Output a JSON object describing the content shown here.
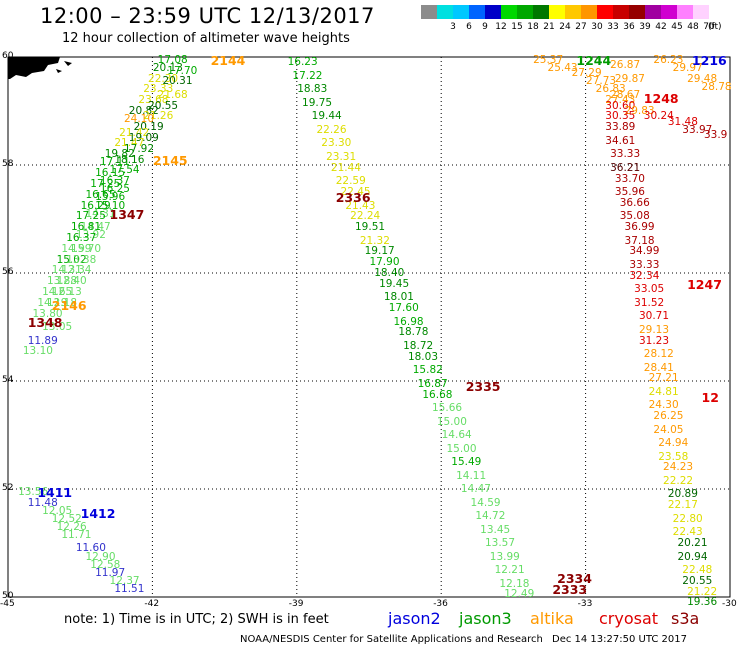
{
  "header": {
    "title": "12:00 – 23:59 UTC 12/13/2017",
    "subtitle": "12 hour collection of altimeter wave heights"
  },
  "legend": {
    "unit": "(ft)",
    "bins": [
      {
        "label": "",
        "color": "#8c8c8c"
      },
      {
        "label": "3",
        "color": "#00e0e0"
      },
      {
        "label": "6",
        "color": "#00c8ff"
      },
      {
        "label": "9",
        "color": "#0064ff"
      },
      {
        "label": "12",
        "color": "#0000c8"
      },
      {
        "label": "15",
        "color": "#00d800"
      },
      {
        "label": "18",
        "color": "#00a800"
      },
      {
        "label": "21",
        "color": "#007800"
      },
      {
        "label": "24",
        "color": "#ffff00"
      },
      {
        "label": "27",
        "color": "#ffc800"
      },
      {
        "label": "30",
        "color": "#ff9600"
      },
      {
        "label": "33",
        "color": "#ff0000"
      },
      {
        "label": "36",
        "color": "#c80000"
      },
      {
        "label": "39",
        "color": "#960000"
      },
      {
        "label": "42",
        "color": "#a000a0"
      },
      {
        "label": "45",
        "color": "#d000d0"
      },
      {
        "label": "48",
        "color": "#ff80ff"
      },
      {
        "label": "70",
        "color": "#ffd2ff"
      }
    ]
  },
  "axes": {
    "x_ticks": [
      "-45",
      "-42",
      "-39",
      "-36",
      "-33",
      "-30"
    ],
    "y_ticks": [
      "60",
      "58",
      "56",
      "54",
      "52",
      "50"
    ],
    "lon_range": [
      -45,
      -30
    ],
    "lat_range": [
      50,
      60
    ]
  },
  "satellites": {
    "jason2": {
      "name": "jason2",
      "color": "#0000dd"
    },
    "jason3": {
      "name": "jason3",
      "color": "#009900"
    },
    "altika": {
      "name": "altika",
      "color": "#ff9900"
    },
    "cryosat": {
      "name": "cryosat",
      "color": "#dd0000"
    },
    "s3a": {
      "name": "s3a",
      "color": "#8b0000"
    }
  },
  "pass_labels": [
    {
      "text": "2144",
      "lon": -40.5,
      "lat": 59.95,
      "color": "#ff9900"
    },
    {
      "text": "2145",
      "lon": -41.7,
      "lat": 58.1,
      "color": "#ff9900"
    },
    {
      "text": "1347",
      "lon": -42.6,
      "lat": 57.1,
      "color": "#8b0000"
    },
    {
      "text": "2146",
      "lon": -43.8,
      "lat": 55.4,
      "color": "#ff9900"
    },
    {
      "text": "1348",
      "lon": -44.3,
      "lat": 55.1,
      "color": "#8b0000"
    },
    {
      "text": "1411",
      "lon": -44.1,
      "lat": 51.95,
      "color": "#0000dd"
    },
    {
      "text": "1412",
      "lon": -43.2,
      "lat": 51.55,
      "color": "#0000dd"
    },
    {
      "text": "2336",
      "lon": -37.9,
      "lat": 57.4,
      "color": "#8b0000"
    },
    {
      "text": "2335",
      "lon": -35.2,
      "lat": 53.9,
      "color": "#8b0000"
    },
    {
      "text": "2334",
      "lon": -33.3,
      "lat": 50.35,
      "color": "#8b0000"
    },
    {
      "text": "2333",
      "lon": -33.4,
      "lat": 50.15,
      "color": "#8b0000"
    },
    {
      "text": "1244",
      "lon": -32.9,
      "lat": 59.95,
      "color": "#009900"
    },
    {
      "text": "1248",
      "lon": -31.5,
      "lat": 59.25,
      "color": "#dd0000"
    },
    {
      "text": "1247",
      "lon": -30.6,
      "lat": 55.8,
      "color": "#dd0000"
    },
    {
      "text": "1216",
      "lon": -30.5,
      "lat": 59.95,
      "color": "#0000dd"
    },
    {
      "text": "12",
      "lon": -30.3,
      "lat": 53.7,
      "color": "#dd0000"
    }
  ],
  "observations": [
    {
      "v": "17.08",
      "lon": -41.6,
      "lat": 59.95,
      "c": "#00aa00"
    },
    {
      "v": "20.13",
      "lon": -41.7,
      "lat": 59.8,
      "c": "#008800"
    },
    {
      "v": "17.70",
      "lon": -41.4,
      "lat": 59.75,
      "c": "#00aa00"
    },
    {
      "v": "22.30",
      "lon": -41.8,
      "lat": 59.6,
      "c": "#dddd00"
    },
    {
      "v": "20.31",
      "lon": -41.5,
      "lat": 59.55,
      "c": "#006600"
    },
    {
      "v": "23.33",
      "lon": -41.9,
      "lat": 59.4,
      "c": "#dddd00"
    },
    {
      "v": "21.68",
      "lon": -41.6,
      "lat": 59.3,
      "c": "#dddd00"
    },
    {
      "v": "23.68",
      "lon": -42.0,
      "lat": 59.2,
      "c": "#dddd00"
    },
    {
      "v": "20.55",
      "lon": -41.8,
      "lat": 59.1,
      "c": "#006600"
    },
    {
      "v": "20.82",
      "lon": -42.2,
      "lat": 59.0,
      "c": "#006600"
    },
    {
      "v": "21.26",
      "lon": -41.9,
      "lat": 58.9,
      "c": "#dddd00"
    },
    {
      "v": "24.10",
      "lon": -42.3,
      "lat": 58.85,
      "c": "#ff9900"
    },
    {
      "v": "20.19",
      "lon": -42.1,
      "lat": 58.7,
      "c": "#006600"
    },
    {
      "v": "21.42",
      "lon": -42.4,
      "lat": 58.6,
      "c": "#dddd00"
    },
    {
      "v": "19.09",
      "lon": -42.2,
      "lat": 58.5,
      "c": "#006600"
    },
    {
      "v": "21.47",
      "lon": -42.5,
      "lat": 58.4,
      "c": "#dddd00"
    },
    {
      "v": "17.92",
      "lon": -42.3,
      "lat": 58.3,
      "c": "#008800"
    },
    {
      "v": "19.82",
      "lon": -42.7,
      "lat": 58.2,
      "c": "#008800"
    },
    {
      "v": "18.16",
      "lon": -42.5,
      "lat": 58.1,
      "c": "#008800"
    },
    {
      "v": "17.11",
      "lon": -42.8,
      "lat": 58.05,
      "c": "#00aa00"
    },
    {
      "v": "17.54",
      "lon": -42.6,
      "lat": 57.9,
      "c": "#00aa00"
    },
    {
      "v": "16.15",
      "lon": -42.9,
      "lat": 57.85,
      "c": "#00aa00"
    },
    {
      "v": "16.37",
      "lon": -42.8,
      "lat": 57.7,
      "c": "#00aa00"
    },
    {
      "v": "17.25",
      "lon": -43.0,
      "lat": 57.65,
      "c": "#00aa00"
    },
    {
      "v": "16.25",
      "lon": -42.8,
      "lat": 57.55,
      "c": "#00aa00"
    },
    {
      "v": "16.65",
      "lon": -43.1,
      "lat": 57.45,
      "c": "#00aa00"
    },
    {
      "v": "15.96",
      "lon": -42.9,
      "lat": 57.4,
      "c": "#00aa00"
    },
    {
      "v": "15.10",
      "lon": -42.9,
      "lat": 57.25,
      "c": "#00aa00"
    },
    {
      "v": "16.29",
      "lon": -43.2,
      "lat": 57.25,
      "c": "#00aa00"
    },
    {
      "v": "14.31",
      "lon": -43.1,
      "lat": 57.1,
      "c": "#66dd66"
    },
    {
      "v": "17.25",
      "lon": -43.3,
      "lat": 57.05,
      "c": "#00aa00"
    },
    {
      "v": "14.47",
      "lon": -43.2,
      "lat": 56.85,
      "c": "#66dd66"
    },
    {
      "v": "16.81",
      "lon": -43.4,
      "lat": 56.85,
      "c": "#00aa00"
    },
    {
      "v": "13.92",
      "lon": -43.3,
      "lat": 56.7,
      "c": "#66dd66"
    },
    {
      "v": "16.37",
      "lon": -43.5,
      "lat": 56.65,
      "c": "#00aa00"
    },
    {
      "v": "14.99",
      "lon": -43.6,
      "lat": 56.45,
      "c": "#66dd66"
    },
    {
      "v": "15.70",
      "lon": -43.4,
      "lat": 56.45,
      "c": "#66dd66"
    },
    {
      "v": "15.02",
      "lon": -43.7,
      "lat": 56.25,
      "c": "#00aa00"
    },
    {
      "v": "13.38",
      "lon": -43.5,
      "lat": 56.25,
      "c": "#66dd66"
    },
    {
      "v": "14.31",
      "lon": -43.8,
      "lat": 56.05,
      "c": "#66dd66"
    },
    {
      "v": "12.34",
      "lon": -43.6,
      "lat": 56.05,
      "c": "#66dd66"
    },
    {
      "v": "13.88",
      "lon": -43.9,
      "lat": 55.85,
      "c": "#66dd66"
    },
    {
      "v": "12.40",
      "lon": -43.7,
      "lat": 55.85,
      "c": "#66dd66"
    },
    {
      "v": "14.65",
      "lon": -44.0,
      "lat": 55.65,
      "c": "#66dd66"
    },
    {
      "v": "12.13",
      "lon": -43.8,
      "lat": 55.65,
      "c": "#66dd66"
    },
    {
      "v": "14.19",
      "lon": -44.1,
      "lat": 55.45,
      "c": "#66dd66"
    },
    {
      "v": "12.18",
      "lon": -43.9,
      "lat": 55.45,
      "c": "#66dd66"
    },
    {
      "v": "13.80",
      "lon": -44.2,
      "lat": 55.25,
      "c": "#66dd66"
    },
    {
      "v": "13.05",
      "lon": -44.0,
      "lat": 55.0,
      "c": "#66dd66"
    },
    {
      "v": "11.89",
      "lon": -44.3,
      "lat": 54.75,
      "c": "#3333cc"
    },
    {
      "v": "13.10",
      "lon": -44.4,
      "lat": 54.55,
      "c": "#66dd66"
    },
    {
      "v": "13.56",
      "lon": -44.5,
      "lat": 51.95,
      "c": "#66dd66"
    },
    {
      "v": "11.48",
      "lon": -44.3,
      "lat": 51.75,
      "c": "#3333cc"
    },
    {
      "v": "12.05",
      "lon": -44.0,
      "lat": 51.6,
      "c": "#66dd66"
    },
    {
      "v": "12.52",
      "lon": -43.8,
      "lat": 51.45,
      "c": "#66dd66"
    },
    {
      "v": "12.26",
      "lon": -43.7,
      "lat": 51.3,
      "c": "#66dd66"
    },
    {
      "v": "11.71",
      "lon": -43.6,
      "lat": 51.15,
      "c": "#66dd66"
    },
    {
      "v": "11.60",
      "lon": -43.3,
      "lat": 50.9,
      "c": "#3333cc"
    },
    {
      "v": "12.90",
      "lon": -43.1,
      "lat": 50.75,
      "c": "#66dd66"
    },
    {
      "v": "12.58",
      "lon": -43.0,
      "lat": 50.6,
      "c": "#66dd66"
    },
    {
      "v": "11.97",
      "lon": -42.9,
      "lat": 50.45,
      "c": "#3333cc"
    },
    {
      "v": "12.37",
      "lon": -42.6,
      "lat": 50.3,
      "c": "#66dd66"
    },
    {
      "v": "11.51",
      "lon": -42.5,
      "lat": 50.15,
      "c": "#3333cc"
    },
    {
      "v": "16.23",
      "lon": -38.9,
      "lat": 59.9,
      "c": "#00aa00"
    },
    {
      "v": "17.22",
      "lon": -38.8,
      "lat": 59.65,
      "c": "#00aa00"
    },
    {
      "v": "18.83",
      "lon": -38.7,
      "lat": 59.4,
      "c": "#008800"
    },
    {
      "v": "19.75",
      "lon": -38.6,
      "lat": 59.15,
      "c": "#008800"
    },
    {
      "v": "19.44",
      "lon": -38.4,
      "lat": 58.9,
      "c": "#008800"
    },
    {
      "v": "22.26",
      "lon": -38.3,
      "lat": 58.65,
      "c": "#dddd00"
    },
    {
      "v": "23.30",
      "lon": -38.2,
      "lat": 58.4,
      "c": "#dddd00"
    },
    {
      "v": "23.31",
      "lon": -38.1,
      "lat": 58.15,
      "c": "#dddd00"
    },
    {
      "v": "21.44",
      "lon": -38.0,
      "lat": 57.95,
      "c": "#dddd00"
    },
    {
      "v": "22.59",
      "lon": -37.9,
      "lat": 57.7,
      "c": "#dddd00"
    },
    {
      "v": "22.45",
      "lon": -37.8,
      "lat": 57.5,
      "c": "#dddd00"
    },
    {
      "v": "21.43",
      "lon": -37.7,
      "lat": 57.25,
      "c": "#dddd00"
    },
    {
      "v": "22.24",
      "lon": -37.6,
      "lat": 57.05,
      "c": "#dddd00"
    },
    {
      "v": "19.51",
      "lon": -37.5,
      "lat": 56.85,
      "c": "#008800"
    },
    {
      "v": "21.32",
      "lon": -37.4,
      "lat": 56.6,
      "c": "#dddd00"
    },
    {
      "v": "19.17",
      "lon": -37.3,
      "lat": 56.4,
      "c": "#008800"
    },
    {
      "v": "17.90",
      "lon": -37.2,
      "lat": 56.2,
      "c": "#00aa00"
    },
    {
      "v": "18.40",
      "lon": -37.1,
      "lat": 56.0,
      "c": "#008800"
    },
    {
      "v": "19.45",
      "lon": -37.0,
      "lat": 55.8,
      "c": "#008800"
    },
    {
      "v": "18.01",
      "lon": -36.9,
      "lat": 55.55,
      "c": "#008800"
    },
    {
      "v": "17.60",
      "lon": -36.8,
      "lat": 55.35,
      "c": "#00aa00"
    },
    {
      "v": "16.98",
      "lon": -36.7,
      "lat": 55.1,
      "c": "#00aa00"
    },
    {
      "v": "18.78",
      "lon": -36.6,
      "lat": 54.9,
      "c": "#008800"
    },
    {
      "v": "18.72",
      "lon": -36.5,
      "lat": 54.65,
      "c": "#008800"
    },
    {
      "v": "18.03",
      "lon": -36.4,
      "lat": 54.45,
      "c": "#008800"
    },
    {
      "v": "15.82",
      "lon": -36.3,
      "lat": 54.2,
      "c": "#00aa00"
    },
    {
      "v": "16.87",
      "lon": -36.2,
      "lat": 53.95,
      "c": "#00aa00"
    },
    {
      "v": "16.68",
      "lon": -36.1,
      "lat": 53.75,
      "c": "#00aa00"
    },
    {
      "v": "15.66",
      "lon": -35.9,
      "lat": 53.5,
      "c": "#66dd66"
    },
    {
      "v": "15.00",
      "lon": -35.8,
      "lat": 53.25,
      "c": "#66dd66"
    },
    {
      "v": "14.64",
      "lon": -35.7,
      "lat": 53.0,
      "c": "#66dd66"
    },
    {
      "v": "15.00",
      "lon": -35.6,
      "lat": 52.75,
      "c": "#66dd66"
    },
    {
      "v": "15.49",
      "lon": -35.5,
      "lat": 52.5,
      "c": "#00aa00"
    },
    {
      "v": "14.11",
      "lon": -35.4,
      "lat": 52.25,
      "c": "#66dd66"
    },
    {
      "v": "14.47",
      "lon": -35.3,
      "lat": 52.0,
      "c": "#66dd66"
    },
    {
      "v": "14.59",
      "lon": -35.1,
      "lat": 51.75,
      "c": "#66dd66"
    },
    {
      "v": "14.72",
      "lon": -35.0,
      "lat": 51.5,
      "c": "#66dd66"
    },
    {
      "v": "13.45",
      "lon": -34.9,
      "lat": 51.25,
      "c": "#66dd66"
    },
    {
      "v": "13.57",
      "lon": -34.8,
      "lat": 51.0,
      "c": "#66dd66"
    },
    {
      "v": "13.99",
      "lon": -34.7,
      "lat": 50.75,
      "c": "#66dd66"
    },
    {
      "v": "12.21",
      "lon": -34.6,
      "lat": 50.5,
      "c": "#66dd66"
    },
    {
      "v": "12.18",
      "lon": -34.5,
      "lat": 50.25,
      "c": "#66dd66"
    },
    {
      "v": "12.49",
      "lon": -34.4,
      "lat": 50.05,
      "c": "#66dd66"
    },
    {
      "v": "25.37",
      "lon": -33.8,
      "lat": 59.95,
      "c": "#ff9900"
    },
    {
      "v": "25.43",
      "lon": -33.5,
      "lat": 59.8,
      "c": "#ff9900"
    },
    {
      "v": "27.29",
      "lon": -33.0,
      "lat": 59.7,
      "c": "#ff9900"
    },
    {
      "v": "26.87",
      "lon": -32.2,
      "lat": 59.85,
      "c": "#ff9900"
    },
    {
      "v": "27.73",
      "lon": -32.7,
      "lat": 59.55,
      "c": "#ff9900"
    },
    {
      "v": "29.87",
      "lon": -32.1,
      "lat": 59.6,
      "c": "#ff9900"
    },
    {
      "v": "26.83",
      "lon": -32.5,
      "lat": 59.4,
      "c": "#ff9900"
    },
    {
      "v": "28.67",
      "lon": -32.2,
      "lat": 59.3,
      "c": "#ff9900"
    },
    {
      "v": "27.43",
      "lon": -32.3,
      "lat": 59.2,
      "c": "#ff9900"
    },
    {
      "v": "30.60",
      "lon": -32.3,
      "lat": 59.1,
      "c": "#dd0000"
    },
    {
      "v": "29.83",
      "lon": -31.9,
      "lat": 59.0,
      "c": "#ff9900"
    },
    {
      "v": "30.35",
      "lon": -32.3,
      "lat": 58.9,
      "c": "#dd0000"
    },
    {
      "v": "30.24",
      "lon": -31.5,
      "lat": 58.9,
      "c": "#dd0000"
    },
    {
      "v": "31.48",
      "lon": -31.0,
      "lat": 58.8,
      "c": "#dd0000"
    },
    {
      "v": "33.89",
      "lon": -32.3,
      "lat": 58.7,
      "c": "#aa0000"
    },
    {
      "v": "33.97",
      "lon": -30.7,
      "lat": 58.65,
      "c": "#aa0000"
    },
    {
      "v": "33.9",
      "lon": -30.25,
      "lat": 58.55,
      "c": "#aa0000"
    },
    {
      "v": "34.61",
      "lon": -32.3,
      "lat": 58.45,
      "c": "#aa0000"
    },
    {
      "v": "33.33",
      "lon": -32.2,
      "lat": 58.2,
      "c": "#aa0000"
    },
    {
      "v": "36.21",
      "lon": -32.2,
      "lat": 57.95,
      "c": "#550000"
    },
    {
      "v": "33.70",
      "lon": -32.1,
      "lat": 57.75,
      "c": "#aa0000"
    },
    {
      "v": "35.96",
      "lon": -32.1,
      "lat": 57.5,
      "c": "#aa0000"
    },
    {
      "v": "36.66",
      "lon": -32.0,
      "lat": 57.3,
      "c": "#aa0000"
    },
    {
      "v": "35.08",
      "lon": -32.0,
      "lat": 57.05,
      "c": "#aa0000"
    },
    {
      "v": "36.99",
      "lon": -31.9,
      "lat": 56.85,
      "c": "#aa0000"
    },
    {
      "v": "37.18",
      "lon": -31.9,
      "lat": 56.6,
      "c": "#aa0000"
    },
    {
      "v": "34.99",
      "lon": -31.8,
      "lat": 56.4,
      "c": "#aa0000"
    },
    {
      "v": "33.33",
      "lon": -31.8,
      "lat": 56.15,
      "c": "#aa0000"
    },
    {
      "v": "32.34",
      "lon": -31.8,
      "lat": 55.95,
      "c": "#dd0000"
    },
    {
      "v": "33.05",
      "lon": -31.7,
      "lat": 55.7,
      "c": "#dd0000"
    },
    {
      "v": "31.52",
      "lon": -31.7,
      "lat": 55.45,
      "c": "#dd0000"
    },
    {
      "v": "30.71",
      "lon": -31.6,
      "lat": 55.2,
      "c": "#dd0000"
    },
    {
      "v": "29.13",
      "lon": -31.6,
      "lat": 54.95,
      "c": "#ff9900"
    },
    {
      "v": "31.23",
      "lon": -31.6,
      "lat": 54.75,
      "c": "#dd0000"
    },
    {
      "v": "28.12",
      "lon": -31.5,
      "lat": 54.5,
      "c": "#ff9900"
    },
    {
      "v": "28.41",
      "lon": -31.5,
      "lat": 54.25,
      "c": "#ff9900"
    },
    {
      "v": "27.21",
      "lon": -31.4,
      "lat": 54.05,
      "c": "#ff9900"
    },
    {
      "v": "24.81",
      "lon": -31.4,
      "lat": 53.8,
      "c": "#dddd00"
    },
    {
      "v": "24.30",
      "lon": -31.4,
      "lat": 53.55,
      "c": "#ff9900"
    },
    {
      "v": "26.25",
      "lon": -31.3,
      "lat": 53.35,
      "c": "#ff9900"
    },
    {
      "v": "24.05",
      "lon": -31.3,
      "lat": 53.1,
      "c": "#ff9900"
    },
    {
      "v": "24.94",
      "lon": -31.2,
      "lat": 52.85,
      "c": "#ff9900"
    },
    {
      "v": "23.58",
      "lon": -31.2,
      "lat": 52.6,
      "c": "#dddd00"
    },
    {
      "v": "24.23",
      "lon": -31.1,
      "lat": 52.4,
      "c": "#ff9900"
    },
    {
      "v": "22.22",
      "lon": -31.1,
      "lat": 52.15,
      "c": "#dddd00"
    },
    {
      "v": "20.89",
      "lon": -31.0,
      "lat": 51.9,
      "c": "#006600"
    },
    {
      "v": "22.17",
      "lon": -31.0,
      "lat": 51.7,
      "c": "#dddd00"
    },
    {
      "v": "22.80",
      "lon": -30.9,
      "lat": 51.45,
      "c": "#dddd00"
    },
    {
      "v": "22.43",
      "lon": -30.9,
      "lat": 51.2,
      "c": "#dddd00"
    },
    {
      "v": "20.21",
      "lon": -30.8,
      "lat": 51.0,
      "c": "#006600"
    },
    {
      "v": "20.94",
      "lon": -30.8,
      "lat": 50.75,
      "c": "#006600"
    },
    {
      "v": "22.48",
      "lon": -30.7,
      "lat": 50.5,
      "c": "#dddd00"
    },
    {
      "v": "20.55",
      "lon": -30.7,
      "lat": 50.3,
      "c": "#006600"
    },
    {
      "v": "21.22",
      "lon": -30.6,
      "lat": 50.1,
      "c": "#dddd00"
    },
    {
      "v": "19.36",
      "lon": -30.6,
      "lat": 49.9,
      "c": "#008800"
    },
    {
      "v": "26.23",
      "lon": -31.3,
      "lat": 59.95,
      "c": "#ff9900"
    },
    {
      "v": "29.97",
      "lon": -30.9,
      "lat": 59.8,
      "c": "#ff9900"
    },
    {
      "v": "29.48",
      "lon": -30.6,
      "lat": 59.6,
      "c": "#ff9900"
    },
    {
      "v": "28.78",
      "lon": -30.3,
      "lat": 59.45,
      "c": "#ff9900"
    }
  ],
  "footer": {
    "note": "note: 1) Time is in UTC; 2) SWH is in feet",
    "credit": "NOAA/NESDIS Center for Satellite Applications and Research",
    "timestamp": "Dec 14 13:27:50 UTC 2017"
  }
}
